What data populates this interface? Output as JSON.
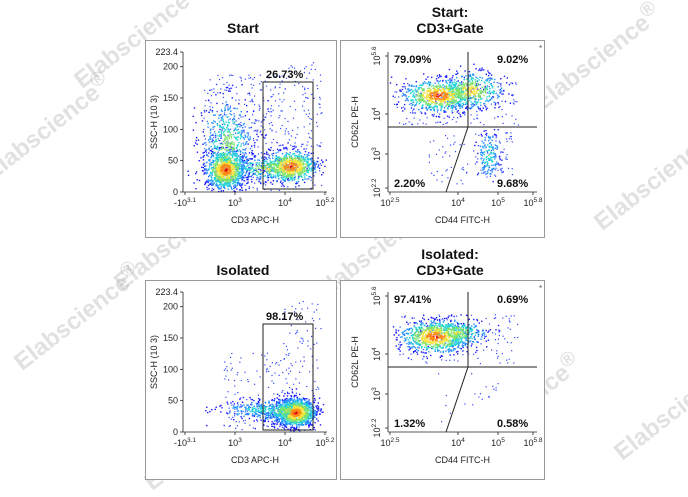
{
  "watermark": "Elabscience",
  "watermark_symbol": "®",
  "colors": {
    "frame": "#9a9a9a",
    "gate": "#222222",
    "density": [
      "#1a1aff",
      "#1f8fff",
      "#25d4d4",
      "#7fe36b",
      "#f5e33b",
      "#ff8a1a",
      "#e01010"
    ]
  },
  "chart_data": [
    {
      "id": "p1",
      "type": "scatter",
      "title": "Start",
      "xlabel": "CD3 APC-H",
      "ylabel": "SSC-H  (10 3)",
      "xscale": "log",
      "xlim_exp": [
        -3.1,
        5.2
      ],
      "ylim": [
        0,
        223.4
      ],
      "xticks": [
        {
          "exp": -3.1,
          "label": "-10",
          "sup": "3.1"
        },
        {
          "exp": 3,
          "label": "10",
          "sup": "3"
        },
        {
          "exp": 4,
          "label": "10",
          "sup": "4"
        },
        {
          "exp": 5.2,
          "label": "10",
          "sup": "5.2"
        }
      ],
      "yticks": [
        "0",
        "50",
        "100",
        "150",
        "200",
        "223.4"
      ],
      "gate": {
        "type": "rectangle",
        "label": "26.73%"
      },
      "populations": [
        {
          "name": "CD3 negative cluster",
          "x_exp": [
            1.5,
            2.8
          ],
          "y": [
            20,
            70
          ]
        },
        {
          "name": "CD3 positive cluster",
          "x_exp": [
            3.5,
            4.3
          ],
          "y": [
            25,
            60
          ]
        }
      ]
    },
    {
      "id": "p2",
      "type": "scatter",
      "title": "Start:",
      "subtitle": "CD3+Gate",
      "xlabel": "CD44 FITC-H",
      "ylabel": "CD62L PE-H",
      "xscale": "log",
      "yscale": "log",
      "xticks": [
        {
          "label": "10",
          "sup": "2.5"
        },
        {
          "label": "10",
          "sup": "4"
        },
        {
          "label": "10",
          "sup": "5"
        },
        {
          "label": "10",
          "sup": "5.8"
        }
      ],
      "yticks": [
        {
          "label": "10",
          "sup": "2.2"
        },
        {
          "label": "10",
          "sup": "3"
        },
        {
          "label": "10",
          "sup": "4"
        },
        {
          "label": "10",
          "sup": "5.6"
        }
      ],
      "quadrants": {
        "top_left": "79.09%",
        "top_right": "9.02%",
        "bottom_left": "2.20%",
        "bottom_right": "9.68%"
      }
    },
    {
      "id": "p3",
      "type": "scatter",
      "title": "Isolated",
      "xlabel": "CD3 APC-H",
      "ylabel": "SSC-H  (10 3)",
      "xscale": "log",
      "ylim": [
        0,
        223.4
      ],
      "xticks": [
        {
          "label": "-10",
          "sup": "3.1"
        },
        {
          "label": "10",
          "sup": "3"
        },
        {
          "label": "10",
          "sup": "4"
        },
        {
          "label": "10",
          "sup": "5.2"
        }
      ],
      "yticks": [
        "0",
        "50",
        "100",
        "150",
        "200",
        "223.4"
      ],
      "gate": {
        "type": "rectangle",
        "label": "98.17%"
      }
    },
    {
      "id": "p4",
      "type": "scatter",
      "title": "Isolated:",
      "subtitle": "CD3+Gate",
      "xlabel": "CD44 FITC-H",
      "ylabel": "CD62L PE-H",
      "xscale": "log",
      "yscale": "log",
      "xticks": [
        {
          "label": "10",
          "sup": "2.5"
        },
        {
          "label": "10",
          "sup": "4"
        },
        {
          "label": "10",
          "sup": "5"
        },
        {
          "label": "10",
          "sup": "5.8"
        }
      ],
      "yticks": [
        {
          "label": "10",
          "sup": "2.2"
        },
        {
          "label": "10",
          "sup": "3"
        },
        {
          "label": "10",
          "sup": "4"
        },
        {
          "label": "10",
          "sup": "5.6"
        }
      ],
      "quadrants": {
        "top_left": "97.41%",
        "top_right": "0.69%",
        "bottom_left": "1.32%",
        "bottom_right": "0.58%"
      }
    }
  ]
}
